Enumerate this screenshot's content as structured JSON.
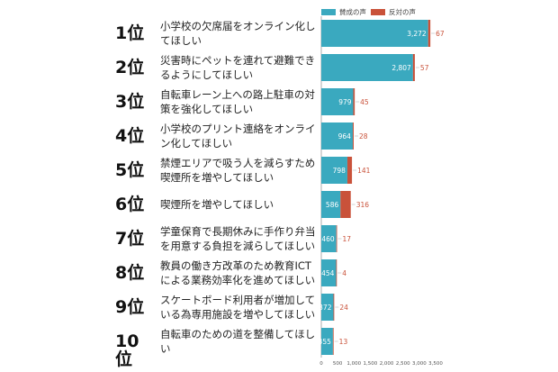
{
  "chart_data": {
    "type": "bar",
    "orientation": "horizontal",
    "stacked": true,
    "categories": [
      {
        "rank": "1位",
        "label": "小学校の欠席届をオンライン化してほしい"
      },
      {
        "rank": "2位",
        "label": "災害時にペットを連れて避難できるようにしてほしい"
      },
      {
        "rank": "3位",
        "label": "自転車レーン上への路上駐車の対策を強化してほしい"
      },
      {
        "rank": "4位",
        "label": "小学校のプリント連絡をオンライン化してほしい"
      },
      {
        "rank": "5位",
        "label": "禁煙エリアで吸う人を減らすため喫煙所を増やしてほしい"
      },
      {
        "rank": "6位",
        "label": "喫煙所を増やしてほしい"
      },
      {
        "rank": "7位",
        "label": "学童保育で長期休みに手作り弁当を用意する負担を減らしてほしい"
      },
      {
        "rank": "8位",
        "label": "教員の働き方改革のため教育ICTによる業務効率化を進めてほしい"
      },
      {
        "rank": "9位",
        "label": "スケートボード利用者が増加している為専用施設を増やしてほしい"
      },
      {
        "rank": "10位",
        "label": "自転車のための道を整備してほしい"
      }
    ],
    "series": [
      {
        "name": "賛成の声",
        "color": "#3aa9bf",
        "values": [
          3272,
          2807,
          979,
          964,
          798,
          586,
          460,
          454,
          372,
          355
        ],
        "labels": [
          "3,272",
          "2,807",
          "979",
          "964",
          "798",
          "586",
          "460",
          "454",
          "372",
          "355"
        ]
      },
      {
        "name": "反対の声",
        "color": "#c9523a",
        "values": [
          67,
          57,
          45,
          28,
          141,
          316,
          17,
          4,
          24,
          13
        ],
        "labels": [
          "67",
          "57",
          "45",
          "28",
          "141",
          "316",
          "17",
          "4",
          "24",
          "13"
        ]
      }
    ],
    "xlim": [
      0,
      3500
    ],
    "xticks": [
      "0",
      "500",
      "1,000",
      "1,500",
      "2,000",
      "2,500",
      "3,000",
      "3,500"
    ],
    "xtick_values": [
      0,
      500,
      1000,
      1500,
      2000,
      2500,
      3000,
      3500
    ],
    "legend": "top"
  }
}
